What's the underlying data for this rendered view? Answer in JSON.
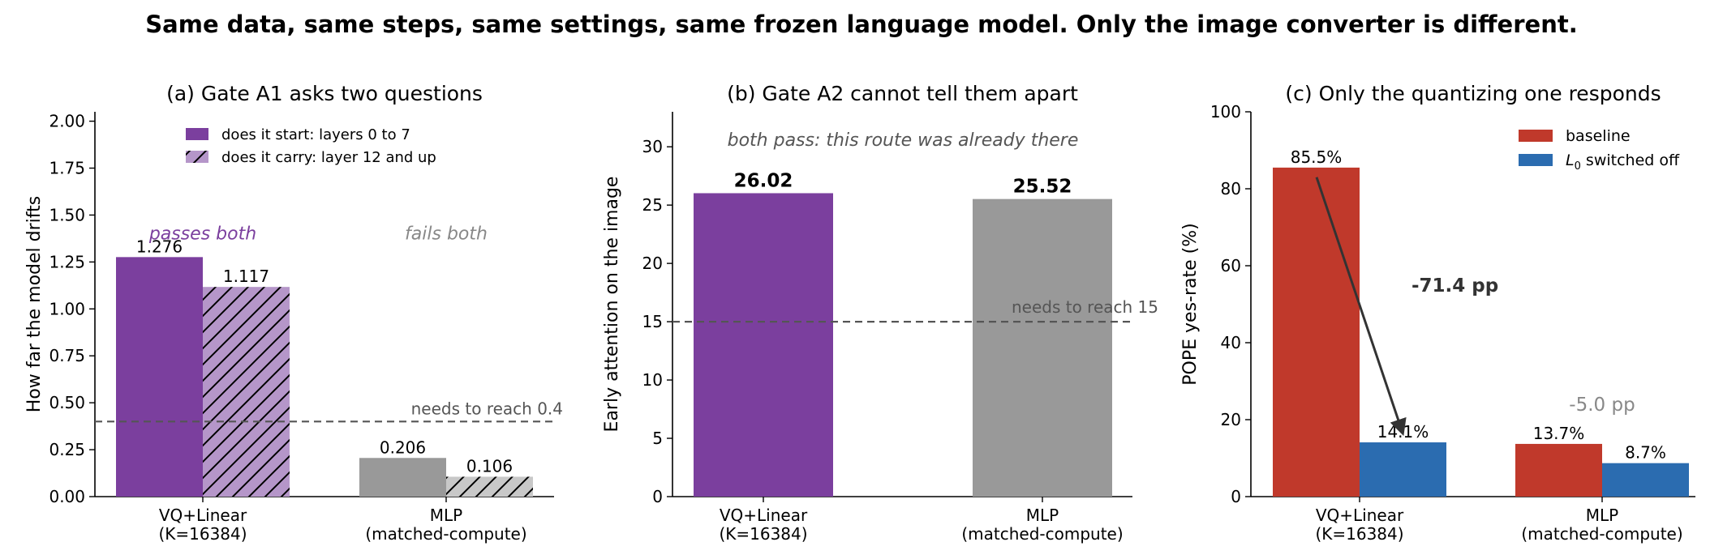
{
  "suptitle": "Same data, same steps, same settings, same frozen language model. Only the image converter is different.",
  "colors": {
    "purple": "#7b3f9e",
    "purple_light": "#b596c9",
    "gray": "#999999",
    "gray_light": "#c8c8c8",
    "red": "#c0392b",
    "blue": "#2b6cb0",
    "threshold": "#555555",
    "annotation_gray": "#888888"
  },
  "chart_data": [
    {
      "id": "a",
      "type": "bar",
      "title": "(a) Gate A1 asks two questions",
      "ylabel": "How far the model drifts",
      "categories": [
        "VQ+Linear\n(K=16384)",
        "MLP\n(matched-compute)"
      ],
      "ylim": [
        0,
        2.05
      ],
      "yticks": [
        "0.00",
        "0.25",
        "0.50",
        "0.75",
        "1.00",
        "1.25",
        "1.50",
        "1.75",
        "2.00"
      ],
      "series": [
        {
          "name": "does it start: layers 0 to 7",
          "values": [
            1.276,
            0.206
          ],
          "labels": [
            "1.276",
            "0.206"
          ],
          "hatch": false
        },
        {
          "name": "does it carry: layer 12 and up",
          "values": [
            1.117,
            0.106
          ],
          "labels": [
            "1.117",
            "0.106"
          ],
          "hatch": true
        }
      ],
      "threshold": {
        "value": 0.4,
        "label": "needs to reach 0.4"
      },
      "group_notes": [
        {
          "text": "passes both",
          "y": 1.4,
          "color": "purple"
        },
        {
          "text": "fails both",
          "y": 1.4,
          "color": "annotation_gray"
        }
      ],
      "legend": "upper-center"
    },
    {
      "id": "b",
      "type": "bar",
      "title": "(b) Gate A2 cannot tell them apart",
      "ylabel": "Early attention on the image",
      "categories": [
        "VQ+Linear\n(K=16384)",
        "MLP\n(matched-compute)"
      ],
      "ylim": [
        0,
        33
      ],
      "yticks": [
        "0",
        "5",
        "10",
        "15",
        "20",
        "25",
        "30"
      ],
      "values": [
        26.02,
        25.52
      ],
      "labels": [
        "26.02",
        "25.52"
      ],
      "threshold": {
        "value": 15,
        "label": "needs to reach 15"
      },
      "annotation": "both pass: this route was already there"
    },
    {
      "id": "c",
      "type": "bar",
      "title": "(c) Only the quantizing one responds",
      "ylabel": "POPE yes-rate (%)",
      "categories": [
        "VQ+Linear\n(K=16384)",
        "MLP\n(matched-compute)"
      ],
      "ylim": [
        0,
        100
      ],
      "yticks": [
        "0",
        "20",
        "40",
        "60",
        "80",
        "100"
      ],
      "series": [
        {
          "name": "baseline",
          "values": [
            85.5,
            13.7
          ],
          "labels": [
            "85.5%",
            "13.7%"
          ]
        },
        {
          "name": "switched off",
          "name_prefix": "L",
          "name_sub": "0",
          "values": [
            14.1,
            8.7
          ],
          "labels": [
            "14.1%",
            "8.7%"
          ]
        }
      ],
      "deltas": [
        {
          "text": "-71.4 pp",
          "y": 55
        },
        {
          "text": "-5.0 pp",
          "y": 24
        }
      ],
      "legend": "upper-right"
    }
  ]
}
